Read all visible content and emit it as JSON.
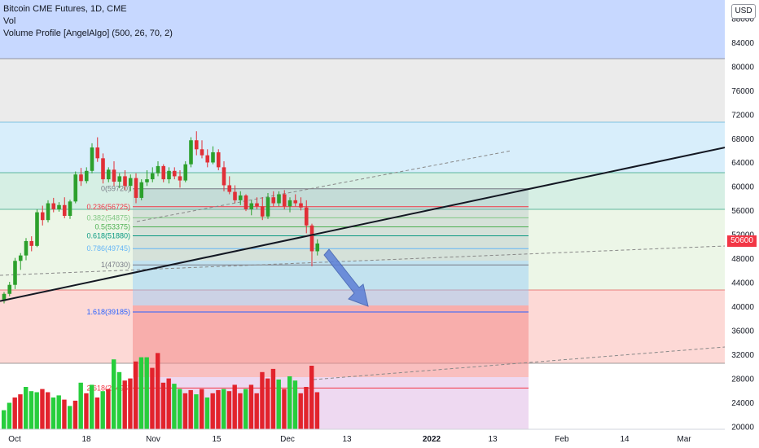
{
  "legend": {
    "line1": "Bitcoin CME Futures, 1D, CME",
    "line2": "Vol",
    "line3": "Volume Profile [AngelAlgo] (500, 26, 70, 2)"
  },
  "currency": "USD",
  "current_price": "50600",
  "chart_data": {
    "type": "candlestick",
    "title": "Bitcoin CME Futures, 1D, CME",
    "y_ticks": [
      20000,
      24000,
      28000,
      32000,
      36000,
      40000,
      44000,
      48000,
      52000,
      56000,
      60000,
      64000,
      68000,
      72000,
      76000,
      80000,
      84000,
      88000
    ],
    "x_ticks": [
      "Oct",
      "18",
      "Nov",
      "15",
      "Dec",
      "13",
      "2022",
      "13",
      "Feb",
      "14",
      "Mar"
    ],
    "fib_levels": [
      {
        "label": "0(59720)",
        "value": 59720,
        "color": "#787b86"
      },
      {
        "label": "0.236(56725)",
        "value": 56725,
        "color": "#f23645"
      },
      {
        "label": "0.382(54875)",
        "value": 54875,
        "color": "#81c784"
      },
      {
        "label": "0.5(53375)",
        "value": 53375,
        "color": "#4caf50"
      },
      {
        "label": "0.618(51880)",
        "value": 51880,
        "color": "#089981"
      },
      {
        "label": "0.786(49745)",
        "value": 49745,
        "color": "#64b5f6"
      },
      {
        "label": "1(47030)",
        "value": 47030,
        "color": "#787b86"
      },
      {
        "label": "1.618(39185)",
        "value": 39185,
        "color": "#2962ff"
      },
      {
        "label": "2.618(26495)",
        "value": 26495,
        "color": "#f23645"
      }
    ],
    "candles": [
      {
        "o": 41000,
        "h": 42500,
        "l": 40600,
        "c": 42200
      },
      {
        "o": 42200,
        "h": 44200,
        "l": 41800,
        "c": 43700
      },
      {
        "o": 43700,
        "h": 48200,
        "l": 43000,
        "c": 47700
      },
      {
        "o": 47700,
        "h": 49000,
        "l": 46200,
        "c": 48600
      },
      {
        "o": 48600,
        "h": 51500,
        "l": 47800,
        "c": 51000
      },
      {
        "o": 51000,
        "h": 51800,
        "l": 49300,
        "c": 50200
      },
      {
        "o": 50200,
        "h": 56300,
        "l": 50000,
        "c": 55800
      },
      {
        "o": 55800,
        "h": 56900,
        "l": 53600,
        "c": 54500
      },
      {
        "o": 54500,
        "h": 57800,
        "l": 54100,
        "c": 57300
      },
      {
        "o": 57300,
        "h": 58200,
        "l": 55800,
        "c": 56300
      },
      {
        "o": 56300,
        "h": 57500,
        "l": 55900,
        "c": 57000
      },
      {
        "o": 57000,
        "h": 58300,
        "l": 54800,
        "c": 55200
      },
      {
        "o": 55200,
        "h": 57900,
        "l": 54700,
        "c": 57600
      },
      {
        "o": 57600,
        "h": 62600,
        "l": 57300,
        "c": 62100
      },
      {
        "o": 62100,
        "h": 63200,
        "l": 60200,
        "c": 61000
      },
      {
        "o": 61000,
        "h": 63300,
        "l": 60600,
        "c": 62700
      },
      {
        "o": 62700,
        "h": 67300,
        "l": 62300,
        "c": 66600
      },
      {
        "o": 66600,
        "h": 68300,
        "l": 64200,
        "c": 64800
      },
      {
        "o": 64800,
        "h": 65600,
        "l": 60600,
        "c": 61300
      },
      {
        "o": 61300,
        "h": 63300,
        "l": 60800,
        "c": 62900
      },
      {
        "o": 62900,
        "h": 64300,
        "l": 60200,
        "c": 60900
      },
      {
        "o": 60900,
        "h": 62300,
        "l": 59800,
        "c": 61800
      },
      {
        "o": 61800,
        "h": 62800,
        "l": 59500,
        "c": 60200
      },
      {
        "o": 60200,
        "h": 62100,
        "l": 59300,
        "c": 61500
      },
      {
        "o": 61500,
        "h": 62300,
        "l": 57300,
        "c": 58200
      },
      {
        "o": 58200,
        "h": 61300,
        "l": 57800,
        "c": 60800
      },
      {
        "o": 60800,
        "h": 62800,
        "l": 60200,
        "c": 61300
      },
      {
        "o": 61300,
        "h": 63300,
        "l": 60800,
        "c": 62300
      },
      {
        "o": 62300,
        "h": 64300,
        "l": 61800,
        "c": 63500
      },
      {
        "o": 63500,
        "h": 63800,
        "l": 60800,
        "c": 61300
      },
      {
        "o": 61300,
        "h": 63300,
        "l": 60600,
        "c": 62700
      },
      {
        "o": 62700,
        "h": 63300,
        "l": 61300,
        "c": 61800
      },
      {
        "o": 61800,
        "h": 62800,
        "l": 59900,
        "c": 61100
      },
      {
        "o": 61100,
        "h": 64300,
        "l": 60800,
        "c": 63800
      },
      {
        "o": 63800,
        "h": 68300,
        "l": 63300,
        "c": 67800
      },
      {
        "o": 67800,
        "h": 69300,
        "l": 65300,
        "c": 66300
      },
      {
        "o": 66300,
        "h": 67800,
        "l": 64800,
        "c": 65300
      },
      {
        "o": 65300,
        "h": 66300,
        "l": 63300,
        "c": 64100
      },
      {
        "o": 64100,
        "h": 66800,
        "l": 63800,
        "c": 65800
      },
      {
        "o": 65800,
        "h": 66300,
        "l": 62800,
        "c": 63300
      },
      {
        "o": 63300,
        "h": 64300,
        "l": 59300,
        "c": 60300
      },
      {
        "o": 60300,
        "h": 61800,
        "l": 58800,
        "c": 59200
      },
      {
        "o": 59200,
        "h": 60300,
        "l": 57300,
        "c": 57800
      },
      {
        "o": 57800,
        "h": 59300,
        "l": 57000,
        "c": 58600
      },
      {
        "o": 58600,
        "h": 58800,
        "l": 56000,
        "c": 56300
      },
      {
        "o": 56300,
        "h": 57800,
        "l": 55300,
        "c": 57300
      },
      {
        "o": 57300,
        "h": 58300,
        "l": 56300,
        "c": 56800
      },
      {
        "o": 56800,
        "h": 58300,
        "l": 54500,
        "c": 55100
      },
      {
        "o": 55100,
        "h": 59000,
        "l": 54700,
        "c": 58300
      },
      {
        "o": 58300,
        "h": 59300,
        "l": 56800,
        "c": 57300
      },
      {
        "o": 57300,
        "h": 59300,
        "l": 56800,
        "c": 58800
      },
      {
        "o": 58800,
        "h": 59500,
        "l": 56300,
        "c": 56800
      },
      {
        "o": 56800,
        "h": 58300,
        "l": 55800,
        "c": 57800
      },
      {
        "o": 57800,
        "h": 58800,
        "l": 56800,
        "c": 57300
      },
      {
        "o": 57300,
        "h": 58300,
        "l": 56100,
        "c": 56600
      },
      {
        "o": 56600,
        "h": 57800,
        "l": 52300,
        "c": 53600
      },
      {
        "o": 53600,
        "h": 53900,
        "l": 46800,
        "c": 49300
      },
      {
        "o": 49300,
        "h": 51300,
        "l": 48600,
        "c": 50600
      }
    ],
    "volumes": [
      {
        "v": 0.18,
        "up": true
      },
      {
        "v": 0.25,
        "up": true
      },
      {
        "v": 0.3,
        "up": false
      },
      {
        "v": 0.33,
        "up": false
      },
      {
        "v": 0.4,
        "up": true
      },
      {
        "v": 0.36,
        "up": true
      },
      {
        "v": 0.35,
        "up": true
      },
      {
        "v": 0.38,
        "up": false
      },
      {
        "v": 0.35,
        "up": false
      },
      {
        "v": 0.3,
        "up": true
      },
      {
        "v": 0.32,
        "up": true
      },
      {
        "v": 0.28,
        "up": false
      },
      {
        "v": 0.22,
        "up": true
      },
      {
        "v": 0.27,
        "up": false
      },
      {
        "v": 0.44,
        "up": true
      },
      {
        "v": 0.34,
        "up": false
      },
      {
        "v": 0.42,
        "up": true
      },
      {
        "v": 0.3,
        "up": false
      },
      {
        "v": 0.36,
        "up": true
      },
      {
        "v": 0.38,
        "up": false
      },
      {
        "v": 0.66,
        "up": true
      },
      {
        "v": 0.54,
        "up": true
      },
      {
        "v": 0.46,
        "up": false
      },
      {
        "v": 0.48,
        "up": false
      },
      {
        "v": 0.64,
        "up": false
      },
      {
        "v": 0.68,
        "up": true
      },
      {
        "v": 0.68,
        "up": true
      },
      {
        "v": 0.58,
        "up": false
      },
      {
        "v": 0.72,
        "up": false
      },
      {
        "v": 0.44,
        "up": false
      },
      {
        "v": 0.48,
        "up": false
      },
      {
        "v": 0.43,
        "up": true
      },
      {
        "v": 0.38,
        "up": true
      },
      {
        "v": 0.34,
        "up": false
      },
      {
        "v": 0.37,
        "up": false
      },
      {
        "v": 0.33,
        "up": true
      },
      {
        "v": 0.38,
        "up": false
      },
      {
        "v": 0.3,
        "up": true
      },
      {
        "v": 0.34,
        "up": false
      },
      {
        "v": 0.37,
        "up": false
      },
      {
        "v": 0.38,
        "up": true
      },
      {
        "v": 0.36,
        "up": false
      },
      {
        "v": 0.42,
        "up": false
      },
      {
        "v": 0.34,
        "up": false
      },
      {
        "v": 0.38,
        "up": true
      },
      {
        "v": 0.42,
        "up": false
      },
      {
        "v": 0.34,
        "up": false
      },
      {
        "v": 0.54,
        "up": false
      },
      {
        "v": 0.48,
        "up": false
      },
      {
        "v": 0.57,
        "up": false
      },
      {
        "v": 0.47,
        "up": true
      },
      {
        "v": 0.38,
        "up": false
      },
      {
        "v": 0.5,
        "up": true
      },
      {
        "v": 0.46,
        "up": true
      },
      {
        "v": 0.34,
        "up": false
      },
      {
        "v": 0.4,
        "up": false
      },
      {
        "v": 0.6,
        "up": false
      },
      {
        "v": 0.35,
        "up": false
      }
    ],
    "trendline": {
      "y_start": 41000,
      "y_end": 66600
    },
    "colors": {
      "up": "#2ca02c",
      "down": "#e12f37",
      "up_volume": "#27ce3c",
      "down_volume": "#e2232c"
    }
  }
}
